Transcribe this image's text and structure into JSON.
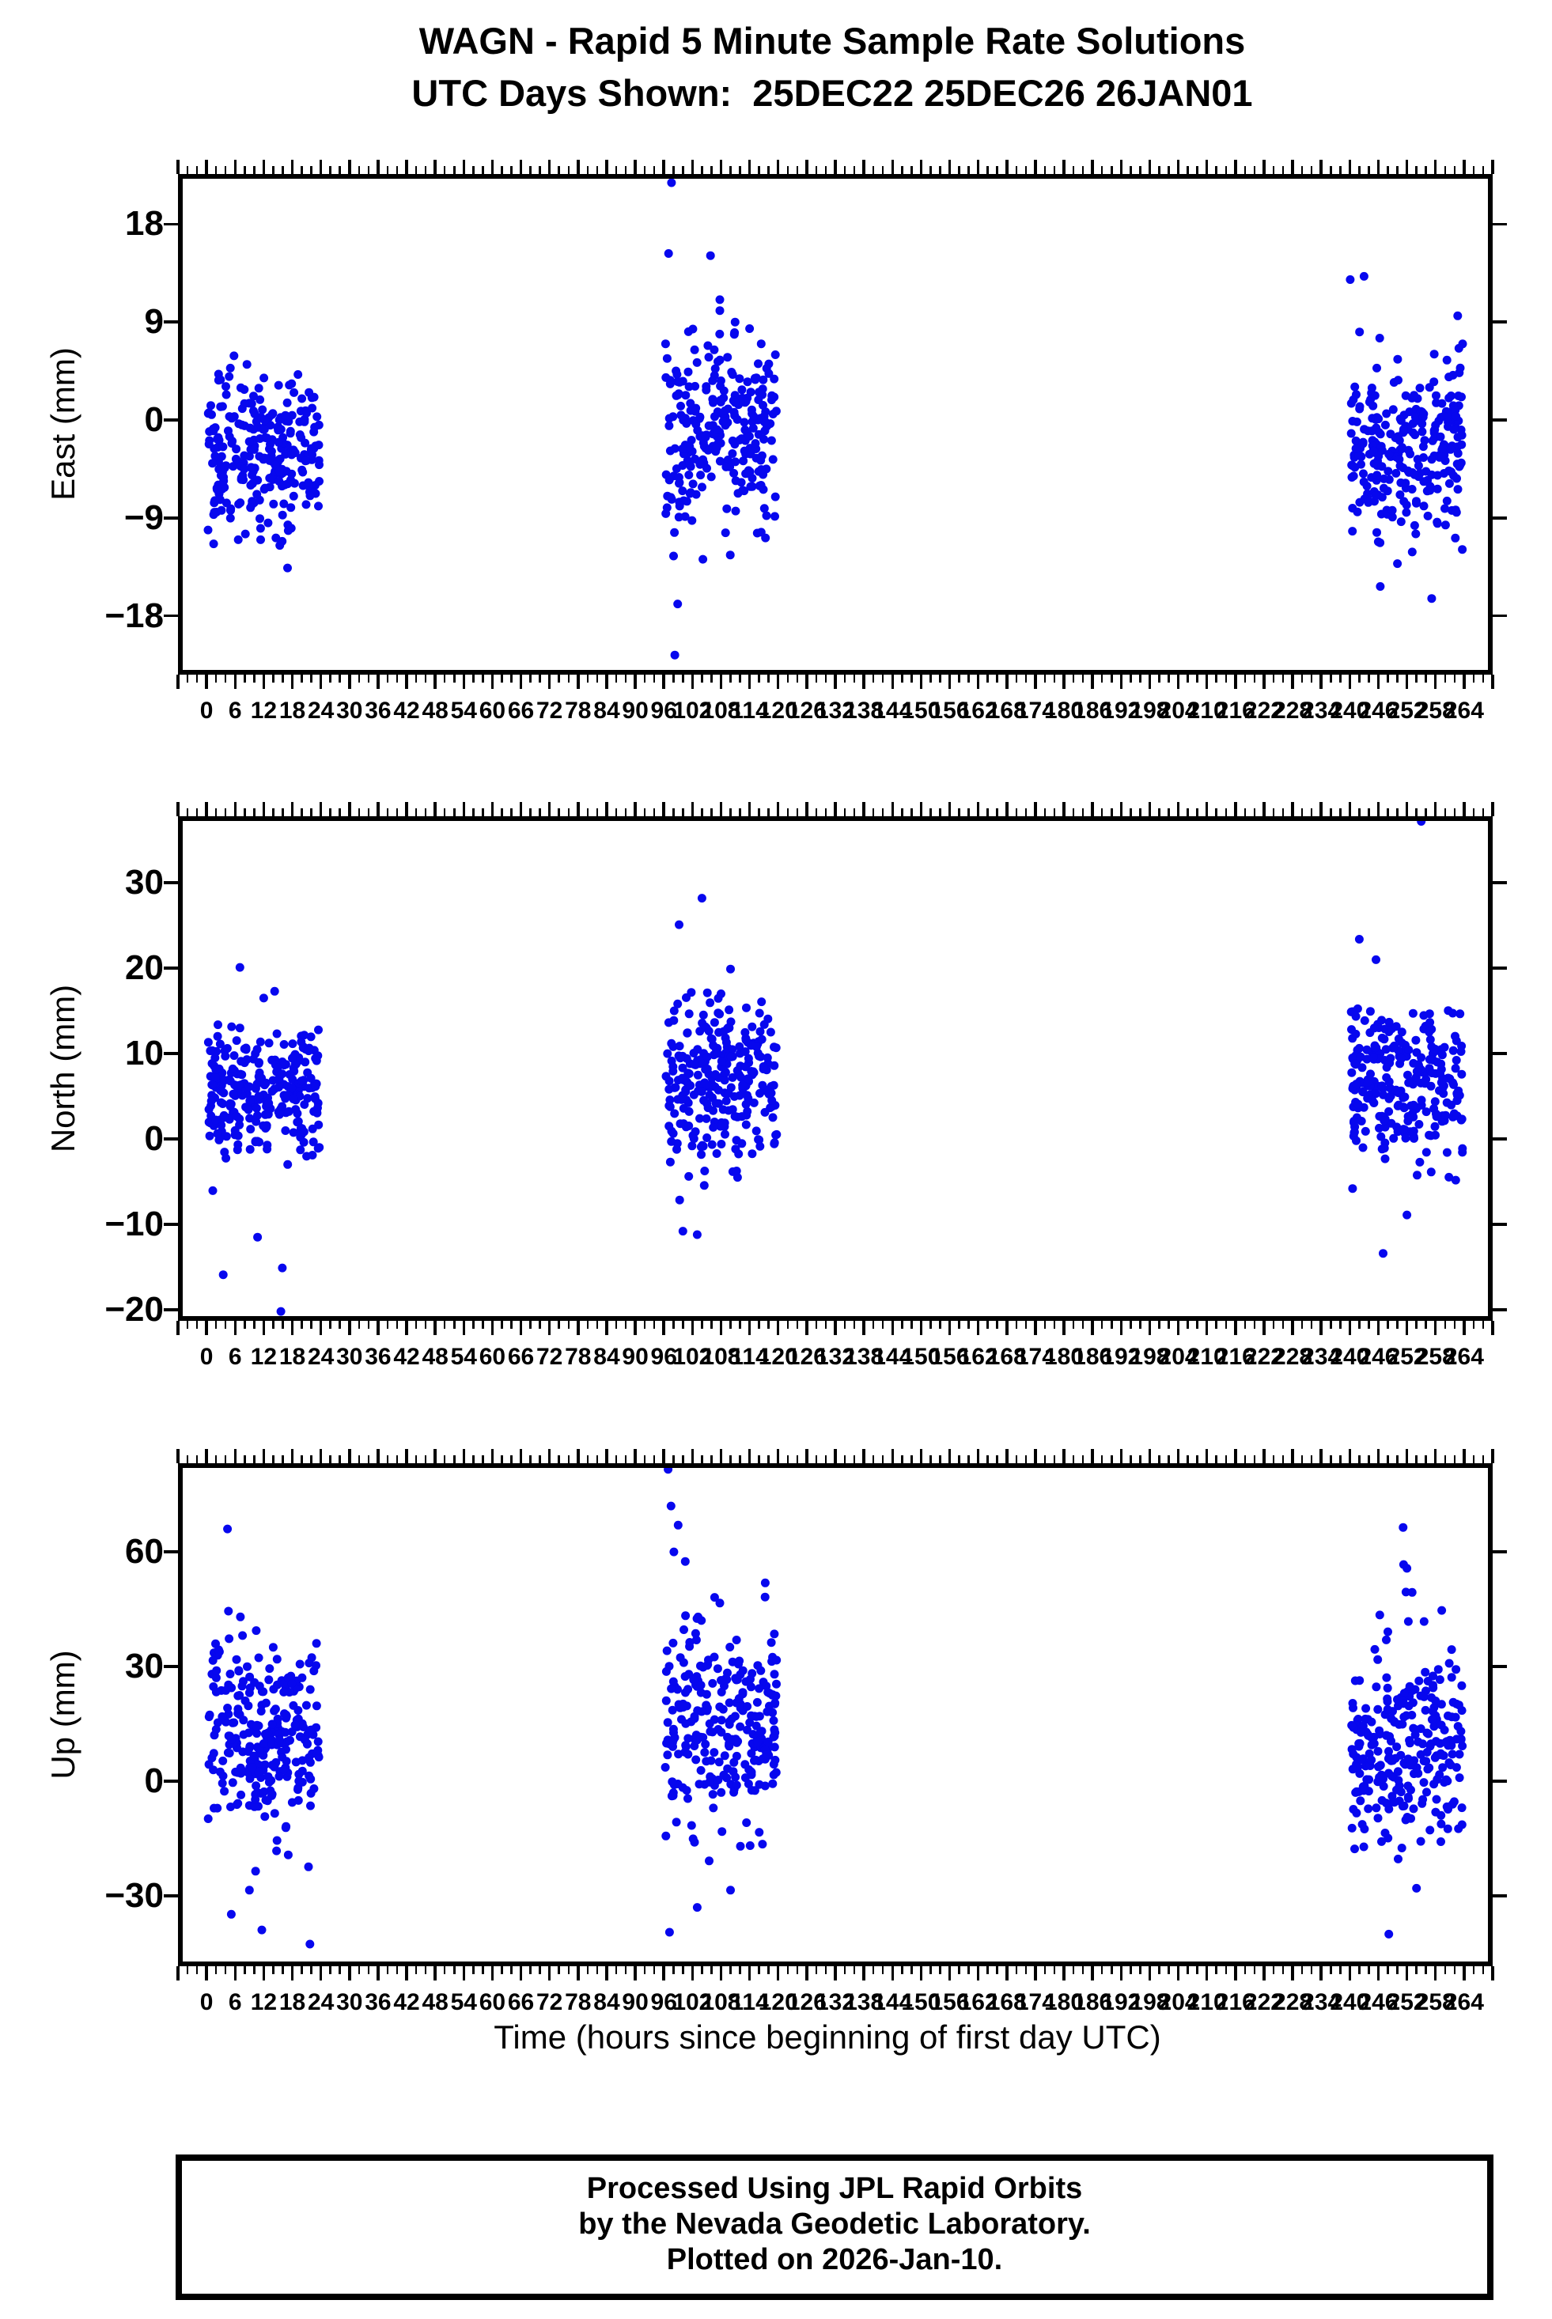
{
  "title": {
    "line1": "WAGN - Rapid 5 Minute Sample Rate Solutions",
    "line2": "UTC Days Shown:  25DEC22 25DEC26 26JAN01"
  },
  "xlabel": "Time (hours since beginning of first day UTC)",
  "footer": {
    "line1": "Processed Using JPL Rapid Orbits",
    "line2": "by the Nevada Geodetic Laboratory.",
    "line3": "Plotted on 2026-Jan-10."
  },
  "chart_data": {
    "type": "scatter",
    "station": "WAGN",
    "days_shown": [
      "25DEC22",
      "25DEC26",
      "26JAN01"
    ],
    "marker": {
      "color": "#0707ee",
      "radius_px": 5.5
    },
    "x_axis": {
      "label": "Time (hours since beginning of first day UTC)",
      "axis_min": -6,
      "axis_max": 270,
      "label_from": 0,
      "label_to": 264,
      "label_step": 6,
      "minor_step": 2
    },
    "panels": [
      {
        "id": "east",
        "ylabel": "East (mm)",
        "ymin": -23.4,
        "ymax": 22.6,
        "yticks": [
          -18,
          -9,
          0,
          9,
          18
        ],
        "clusters": [
          {
            "x0": 0.3,
            "x1": 23.7,
            "n": 265,
            "mean": -3.1,
            "std": 3.6,
            "lo": -11.8,
            "hi": 7.1,
            "seed": 11
          },
          {
            "x0": 96.3,
            "x1": 119.7,
            "n": 265,
            "mean": -0.8,
            "std": 4.6,
            "lo": -12.6,
            "hi": 15.0,
            "seed": 22
          },
          {
            "x0": 240.2,
            "x1": 263.7,
            "n": 265,
            "mean": -2.4,
            "std": 4.3,
            "lo": -12.4,
            "hi": 11.0,
            "seed": 33
          }
        ],
        "outliers": [
          [
            17,
            -13.6
          ],
          [
            97.6,
            21.8
          ],
          [
            97.0,
            15.3
          ],
          [
            105.8,
            15.1
          ],
          [
            98.9,
            -16.9
          ],
          [
            98.3,
            -21.6
          ],
          [
            104.2,
            -12.8
          ],
          [
            240.1,
            12.9
          ],
          [
            243.0,
            13.2
          ],
          [
            246.4,
            -15.3
          ],
          [
            257.2,
            -16.4
          ],
          [
            250.0,
            -13.2
          ]
        ]
      },
      {
        "id": "north",
        "ylabel": "North (mm)",
        "ymin": -21.3,
        "ymax": 37.8,
        "yticks": [
          -20,
          -10,
          0,
          10,
          20,
          30
        ],
        "clusters": [
          {
            "x0": 0.3,
            "x1": 23.7,
            "n": 265,
            "mean": 5.4,
            "std": 3.6,
            "lo": -7.8,
            "hi": 14.3,
            "seed": 44
          },
          {
            "x0": 96.3,
            "x1": 119.7,
            "n": 265,
            "mean": 6.8,
            "std": 5.0,
            "lo": -8.4,
            "hi": 17.4,
            "seed": 55
          },
          {
            "x0": 240.2,
            "x1": 263.7,
            "n": 265,
            "mean": 6.9,
            "std": 4.6,
            "lo": -7.4,
            "hi": 16.4,
            "seed": 66
          }
        ],
        "outliers": [
          [
            7,
            20.1
          ],
          [
            14.3,
            17.3
          ],
          [
            12,
            16.5
          ],
          [
            3.5,
            -15.9
          ],
          [
            15.6,
            -20.2
          ],
          [
            15.9,
            -15.1
          ],
          [
            10.7,
            -11.5
          ],
          [
            104,
            28.2
          ],
          [
            99.2,
            25.1
          ],
          [
            110,
            19.9
          ],
          [
            100,
            -10.8
          ],
          [
            103,
            -11.2
          ],
          [
            255,
            37.2
          ],
          [
            242,
            23.4
          ],
          [
            245.5,
            21.0
          ],
          [
            247,
            -13.4
          ],
          [
            252,
            -8.9
          ]
        ]
      },
      {
        "id": "up",
        "ylabel": "Up (mm)",
        "ymin": -48.4,
        "ymax": 83.2,
        "yticks": [
          -30,
          0,
          30,
          60
        ],
        "clusters": [
          {
            "x0": 0.3,
            "x1": 23.7,
            "n": 265,
            "mean": 12,
            "std": 12,
            "lo": -26,
            "hi": 42,
            "seed": 77
          },
          {
            "x0": 96.3,
            "x1": 119.7,
            "n": 265,
            "mean": 15,
            "std": 14,
            "lo": -27,
            "hi": 52,
            "seed": 88
          },
          {
            "x0": 240.2,
            "x1": 263.7,
            "n": 265,
            "mean": 8,
            "std": 12,
            "lo": -24,
            "hi": 37,
            "seed": 99
          }
        ],
        "outliers": [
          [
            4.4,
            66
          ],
          [
            4.6,
            44.5
          ],
          [
            7.1,
            43
          ],
          [
            5.2,
            -34.8
          ],
          [
            11.6,
            -38.9
          ],
          [
            21.7,
            -42.6
          ],
          [
            9,
            -28.5
          ],
          [
            96.9,
            81.6
          ],
          [
            97.5,
            72
          ],
          [
            99,
            67
          ],
          [
            98.1,
            60
          ],
          [
            100.5,
            57.5
          ],
          [
            97.2,
            -39.5
          ],
          [
            103,
            -33
          ],
          [
            110,
            -28.5
          ],
          [
            251.2,
            66.4
          ],
          [
            251.3,
            56.7
          ],
          [
            252,
            55.7
          ],
          [
            251.8,
            49.5
          ],
          [
            253.1,
            49.4
          ],
          [
            246.3,
            43.5
          ],
          [
            259.3,
            44.7
          ],
          [
            252.3,
            41.8
          ],
          [
            255.6,
            41.8
          ],
          [
            248,
            39.1
          ],
          [
            248.2,
            -40
          ],
          [
            254,
            -28
          ]
        ]
      }
    ]
  }
}
